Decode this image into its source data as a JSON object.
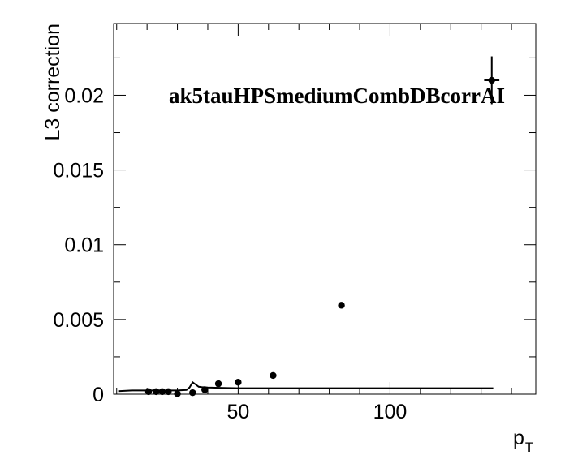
{
  "chart_data": {
    "type": "scatter",
    "annotation": "ak5tauHPSmediumCombDBcorrAI",
    "xlabel": "p",
    "xlabel_sub": "T",
    "ylabel": "L3 correction",
    "xlim": [
      9,
      148
    ],
    "ylim": [
      0,
      0.0248
    ],
    "x_ticks": [
      {
        "value": 50,
        "label": "50"
      },
      {
        "value": 100,
        "label": "100"
      }
    ],
    "y_ticks": [
      {
        "value": 0,
        "label": "0"
      },
      {
        "value": 0.005,
        "label": "0.005"
      },
      {
        "value": 0.01,
        "label": "0.01"
      },
      {
        "value": 0.015,
        "label": "0.015"
      },
      {
        "value": 0.02,
        "label": "0.02"
      }
    ],
    "points": [
      {
        "x": 20.5,
        "y": 0.00017,
        "xerr": 0,
        "yerr": 0
      },
      {
        "x": 23.0,
        "y": 0.00017,
        "xerr": 0,
        "yerr": 0
      },
      {
        "x": 25.0,
        "y": 0.00017,
        "xerr": 0,
        "yerr": 0
      },
      {
        "x": 27.0,
        "y": 0.00017,
        "xerr": 0,
        "yerr": 0
      },
      {
        "x": 30.0,
        "y": 3e-05,
        "xerr": 0,
        "yerr": 0
      },
      {
        "x": 35.0,
        "y": 0.0001,
        "xerr": 0,
        "yerr": 0
      },
      {
        "x": 39.0,
        "y": 0.0003,
        "xerr": 0,
        "yerr": 0
      },
      {
        "x": 43.5,
        "y": 0.0007,
        "xerr": 0,
        "yerr": 0
      },
      {
        "x": 50.0,
        "y": 0.0008,
        "xerr": 0,
        "yerr": 0
      },
      {
        "x": 61.5,
        "y": 0.00125,
        "xerr": 0,
        "yerr": 0
      },
      {
        "x": 84.0,
        "y": 0.00595,
        "xerr": 0,
        "yerr": 0
      },
      {
        "x": 133.5,
        "y": 0.021,
        "xerr": 2.5,
        "yerr": 0.0016
      }
    ],
    "fit_curve": [
      [
        10.5,
        0.0002
      ],
      [
        15,
        0.00025
      ],
      [
        20,
        0.00025
      ],
      [
        25,
        0.00025
      ],
      [
        30,
        0.00025
      ],
      [
        33,
        0.00028
      ],
      [
        34,
        0.00045
      ],
      [
        35,
        0.0008
      ],
      [
        36,
        0.00065
      ],
      [
        37,
        0.0005
      ],
      [
        38,
        0.00048
      ],
      [
        40,
        0.00045
      ],
      [
        45,
        0.00042
      ],
      [
        50,
        0.0004
      ],
      [
        70,
        0.0004
      ],
      [
        100,
        0.0004
      ],
      [
        134,
        0.0004
      ]
    ]
  }
}
